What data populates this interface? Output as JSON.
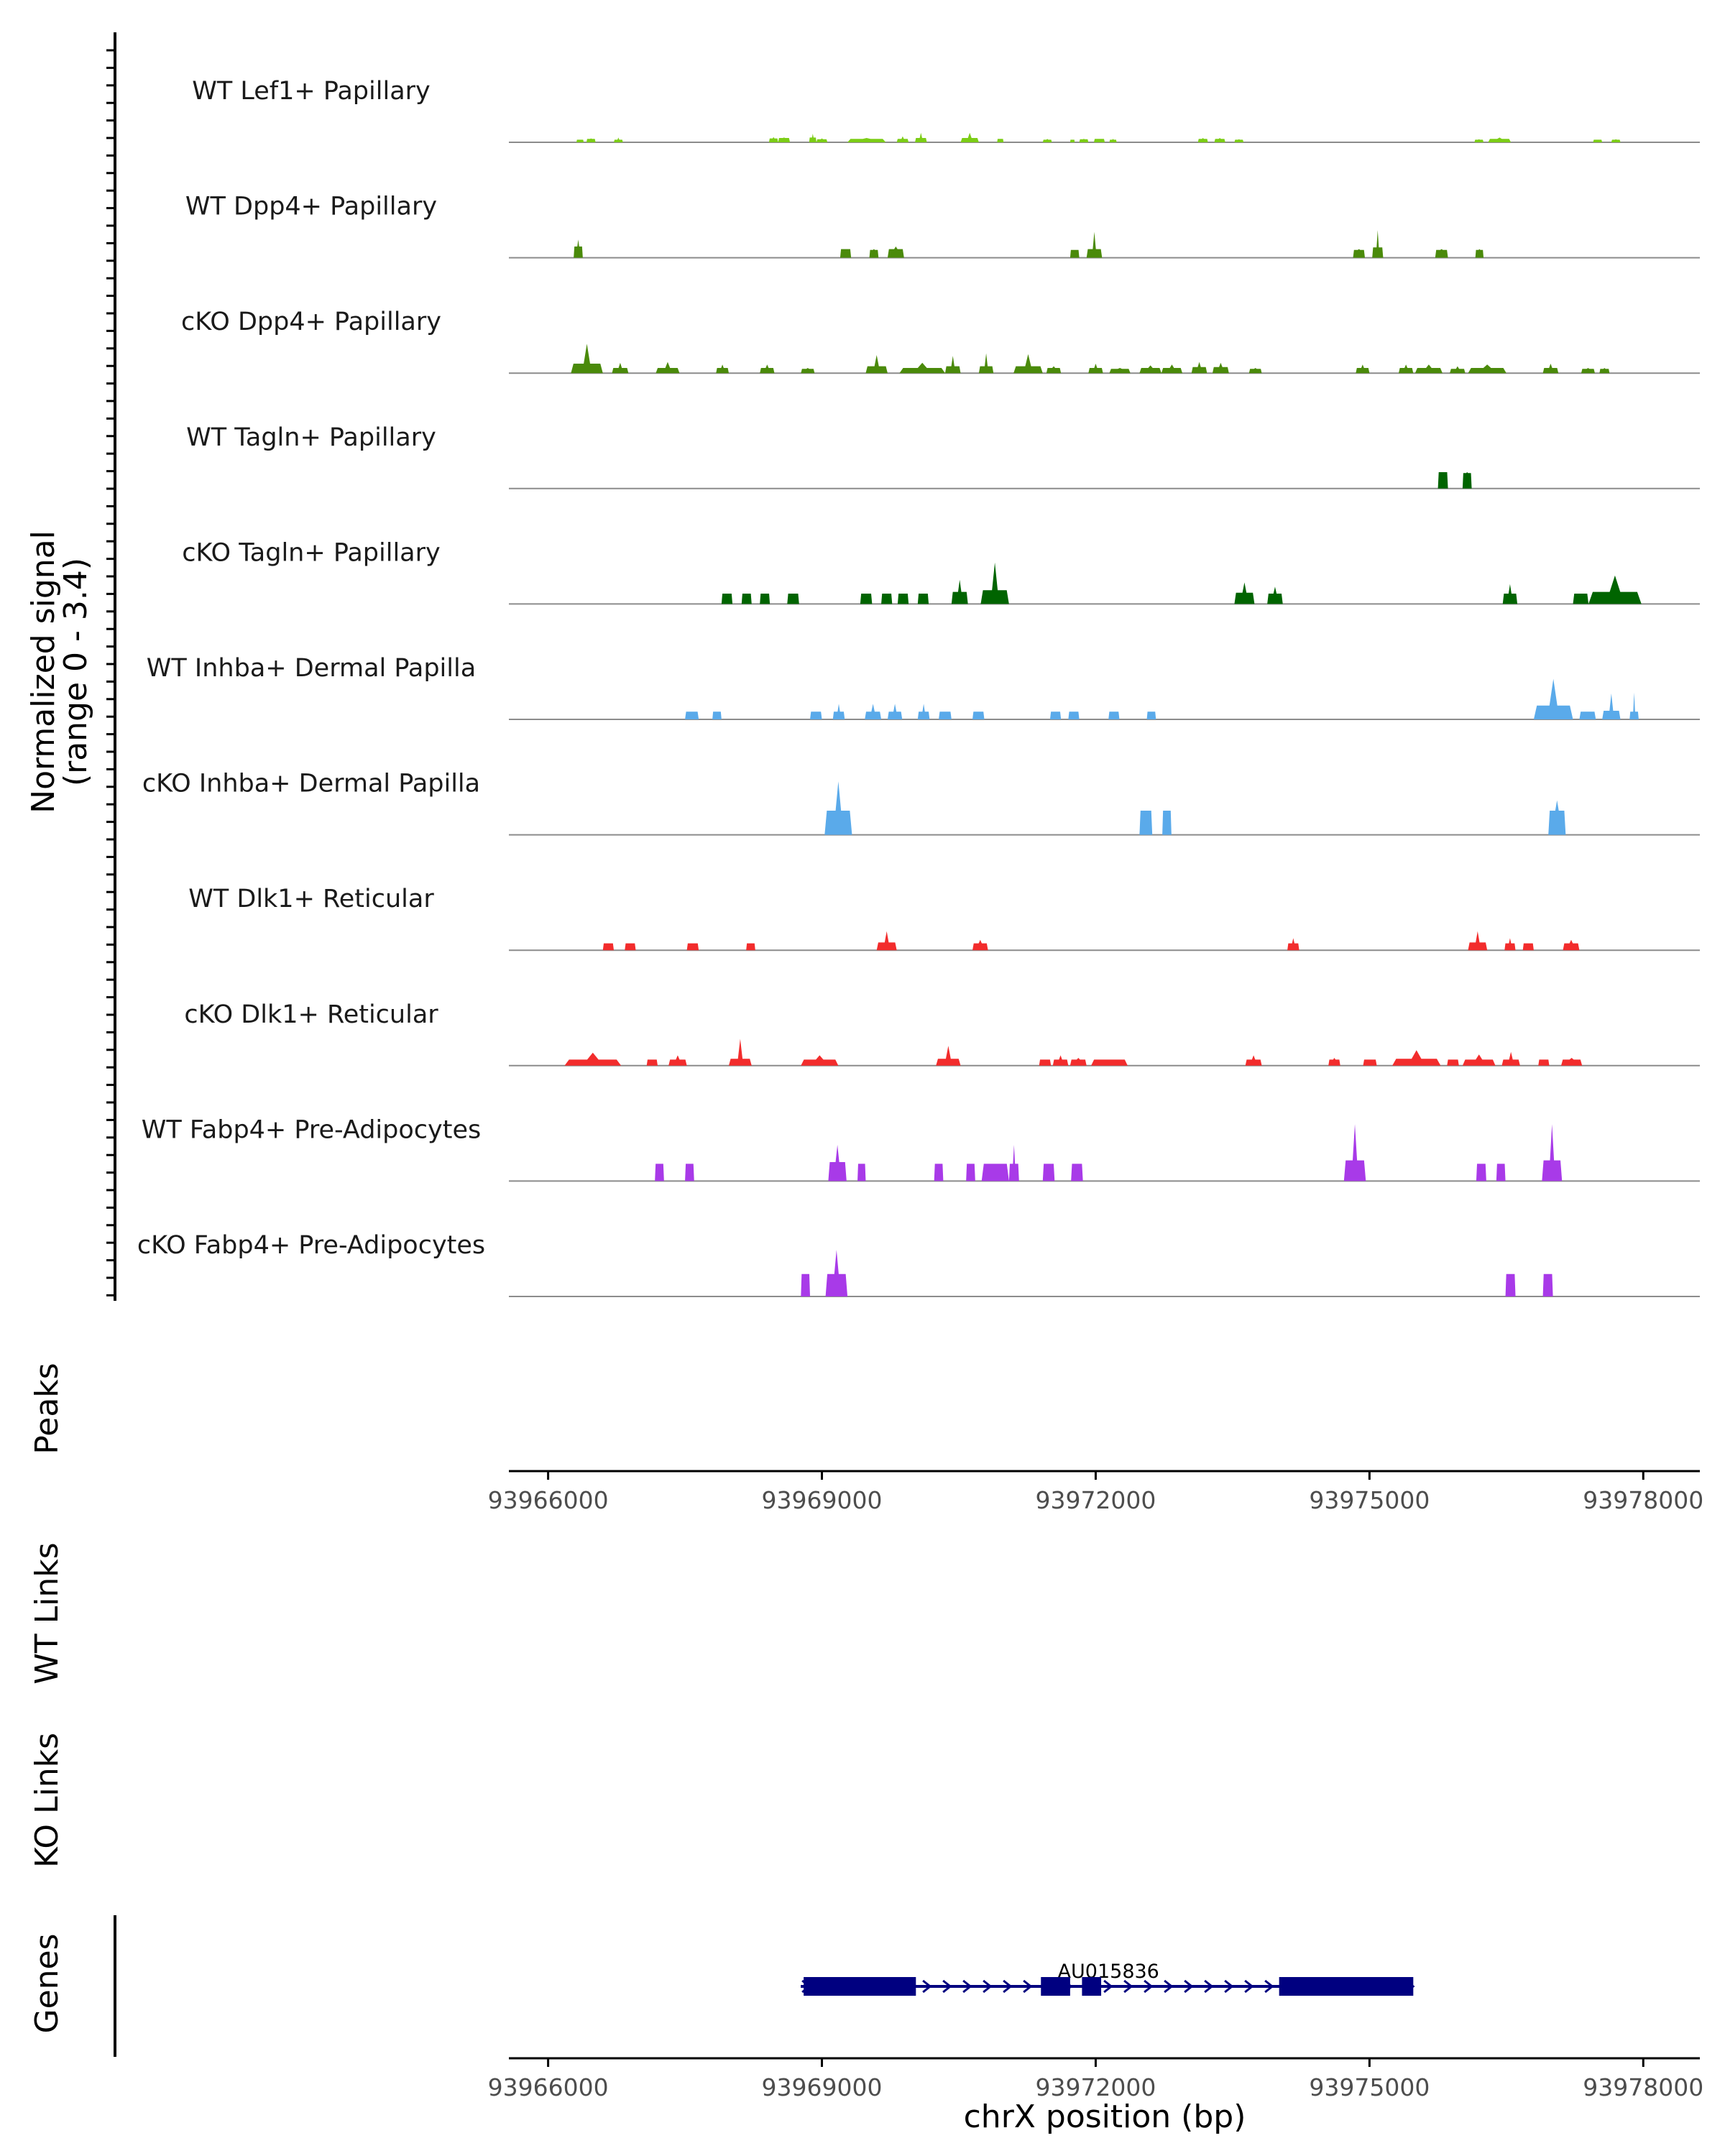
{
  "chart_data": {
    "type": "area",
    "title": "",
    "chromosome": "chrX",
    "xlabel": "chrX position (bp)",
    "xlim": [
      93965570,
      93978620
    ],
    "xticks": [
      93966000,
      93969000,
      93972000,
      93975000,
      93978000
    ],
    "xtick_labels": [
      "93966000",
      "93969000",
      "93972000",
      "93975000",
      "93978000"
    ],
    "signal_ylabel_line1": "Normalized signal",
    "signal_ylabel_line2": "(range 0 - 3.4)",
    "ylim": [
      0,
      3.4
    ],
    "tracks": [
      {
        "name": "WT Lef1+ Papillary",
        "color": "#7CCD16",
        "regions": [
          [
            93966310,
            93966390,
            0.3,
            0.3
          ],
          [
            93966420,
            93966520,
            0.45,
            0.4
          ],
          [
            93966720,
            93966820,
            0.55,
            0.3
          ],
          [
            93968420,
            93968520,
            0.6,
            0.45
          ],
          [
            93968520,
            93968650,
            0.55,
            0.5
          ],
          [
            93968860,
            93968940,
            1.0,
            0.55
          ],
          [
            93968940,
            93969060,
            0.45,
            0.35
          ],
          [
            93969280,
            93969700,
            0.5,
            0.4
          ],
          [
            93969820,
            93969950,
            0.7,
            0.4
          ],
          [
            93970020,
            93970150,
            1.1,
            0.5
          ],
          [
            93970520,
            93970720,
            1.1,
            0.5
          ],
          [
            93970920,
            93970990,
            0.4,
            0.4
          ],
          [
            93971420,
            93971520,
            0.4,
            0.3
          ],
          [
            93971720,
            93971770,
            0.3,
            0.3
          ],
          [
            93971820,
            93971920,
            0.4,
            0.35
          ],
          [
            93971980,
            93972100,
            0.4,
            0.4
          ],
          [
            93972150,
            93972230,
            0.4,
            0.3
          ],
          [
            93973120,
            93973230,
            0.5,
            0.4
          ],
          [
            93973300,
            93973420,
            0.5,
            0.4
          ],
          [
            93973520,
            93973620,
            0.35,
            0.3
          ],
          [
            93976150,
            93976250,
            0.35,
            0.3
          ],
          [
            93976300,
            93976550,
            0.55,
            0.4
          ],
          [
            93977450,
            93977550,
            0.3,
            0.3
          ],
          [
            93977650,
            93977750,
            0.35,
            0.3
          ]
        ]
      },
      {
        "name": "WT Dpp4+ Papillary",
        "color": "#4A8A0A",
        "regions": [
          [
            93966280,
            93966380,
            2.1,
            1.3
          ],
          [
            93969200,
            93969320,
            1.0,
            1.0
          ],
          [
            93969520,
            93969620,
            1.0,
            0.9
          ],
          [
            93969720,
            93969900,
            1.3,
            1.0
          ],
          [
            93971720,
            93971820,
            0.9,
            0.9
          ],
          [
            93971900,
            93972070,
            3.0,
            1.0
          ],
          [
            93974820,
            93974950,
            1.0,
            0.9
          ],
          [
            93975030,
            93975150,
            3.2,
            1.2
          ],
          [
            93975720,
            93975860,
            1.0,
            0.9
          ],
          [
            93976160,
            93976250,
            1.0,
            0.9
          ]
        ]
      },
      {
        "name": "cKO Dpp4+ Papillary",
        "color": "#4A8A0A",
        "regions": [
          [
            93966250,
            93966600,
            3.4,
            1.1
          ],
          [
            93966700,
            93966880,
            1.2,
            0.6
          ],
          [
            93967180,
            93967440,
            1.3,
            0.6
          ],
          [
            93967840,
            93967980,
            1.0,
            0.6
          ],
          [
            93968320,
            93968480,
            1.0,
            0.6
          ],
          [
            93968770,
            93968920,
            0.6,
            0.5
          ],
          [
            93969480,
            93969720,
            2.1,
            0.8
          ],
          [
            93969850,
            93970350,
            1.2,
            0.6
          ],
          [
            93970350,
            93970520,
            2.0,
            0.8
          ],
          [
            93970720,
            93970880,
            2.3,
            0.8
          ],
          [
            93971100,
            93971420,
            2.2,
            0.8
          ],
          [
            93971460,
            93971620,
            0.8,
            0.6
          ],
          [
            93971920,
            93972080,
            1.1,
            0.6
          ],
          [
            93972150,
            93972380,
            0.6,
            0.5
          ],
          [
            93972480,
            93972720,
            0.9,
            0.6
          ],
          [
            93972720,
            93972950,
            1.0,
            0.6
          ],
          [
            93973050,
            93973220,
            1.3,
            0.7
          ],
          [
            93973280,
            93973460,
            1.2,
            0.7
          ],
          [
            93973680,
            93973820,
            0.6,
            0.5
          ],
          [
            93974850,
            93975000,
            1.0,
            0.6
          ],
          [
            93975320,
            93975480,
            1.0,
            0.6
          ],
          [
            93975500,
            93975800,
            1.0,
            0.6
          ],
          [
            93975880,
            93976050,
            0.8,
            0.5
          ],
          [
            93976080,
            93976500,
            1.0,
            0.6
          ],
          [
            93976900,
            93977070,
            1.1,
            0.6
          ],
          [
            93977320,
            93977470,
            0.6,
            0.5
          ],
          [
            93977520,
            93977630,
            0.6,
            0.5
          ]
        ]
      },
      {
        "name": "WT Tagln+ Papillary",
        "color": "#006400",
        "regions": [
          [
            93975750,
            93975860,
            1.9,
            1.9
          ],
          [
            93976020,
            93976120,
            1.9,
            1.8
          ]
        ]
      },
      {
        "name": "cKO Tagln+ Papillary",
        "color": "#006400",
        "regions": [
          [
            93967900,
            93968020,
            1.2,
            1.2
          ],
          [
            93968120,
            93968230,
            1.2,
            1.2
          ],
          [
            93968320,
            93968430,
            1.2,
            1.2
          ],
          [
            93968620,
            93968750,
            1.2,
            1.2
          ],
          [
            93969420,
            93969550,
            1.2,
            1.2
          ],
          [
            93969650,
            93969770,
            1.2,
            1.2
          ],
          [
            93969830,
            93969950,
            1.2,
            1.2
          ],
          [
            93970050,
            93970170,
            1.2,
            1.2
          ],
          [
            93970420,
            93970600,
            2.8,
            1.4
          ],
          [
            93970740,
            93971050,
            4.8,
            1.6
          ],
          [
            93973520,
            93973740,
            2.5,
            1.3
          ],
          [
            93973880,
            93974050,
            2.0,
            1.2
          ],
          [
            93976460,
            93976620,
            2.3,
            1.2
          ],
          [
            93977230,
            93977400,
            1.2,
            1.2
          ],
          [
            93977400,
            93977980,
            3.3,
            1.4
          ]
        ]
      },
      {
        "name": "WT Inhba+ Dermal Papilla",
        "color": "#5AAAEA",
        "regions": [
          [
            93967500,
            93967650,
            0.9,
            0.9
          ],
          [
            93967800,
            93967900,
            0.9,
            0.9
          ],
          [
            93968870,
            93969000,
            0.9,
            0.9
          ],
          [
            93969120,
            93969250,
            1.8,
            0.9
          ],
          [
            93969470,
            93969650,
            1.8,
            0.9
          ],
          [
            93969720,
            93969880,
            1.8,
            0.9
          ],
          [
            93970050,
            93970180,
            1.8,
            0.9
          ],
          [
            93970280,
            93970420,
            0.9,
            0.9
          ],
          [
            93970650,
            93970780,
            0.9,
            0.9
          ],
          [
            93971500,
            93971620,
            0.9,
            0.9
          ],
          [
            93971700,
            93971820,
            0.9,
            0.9
          ],
          [
            93972140,
            93972260,
            0.9,
            0.9
          ],
          [
            93972560,
            93972660,
            0.9,
            0.9
          ],
          [
            93976800,
            93977230,
            4.7,
            1.6
          ],
          [
            93977300,
            93977480,
            0.9,
            0.9
          ],
          [
            93977550,
            93977750,
            3.0,
            1.0
          ],
          [
            93977850,
            93977950,
            3.1,
            0.9
          ]
        ]
      },
      {
        "name": "cKO Inhba+ Dermal Papilla",
        "color": "#5AAAEA",
        "regions": [
          [
            93969030,
            93969330,
            6.2,
            2.8
          ],
          [
            93972480,
            93972620,
            2.8,
            2.8
          ],
          [
            93972730,
            93972830,
            2.8,
            2.8
          ],
          [
            93976960,
            93977150,
            4.0,
            2.8
          ]
        ]
      },
      {
        "name": "WT Dlk1+ Reticular",
        "color": "#F22C2C",
        "regions": [
          [
            93966600,
            93966720,
            0.8,
            0.8
          ],
          [
            93966840,
            93966960,
            0.8,
            0.8
          ],
          [
            93967520,
            93967650,
            0.8,
            0.8
          ],
          [
            93968170,
            93968270,
            0.8,
            0.8
          ],
          [
            93969600,
            93969820,
            2.2,
            0.9
          ],
          [
            93970650,
            93970820,
            1.2,
            0.8
          ],
          [
            93974100,
            93974230,
            1.4,
            0.8
          ],
          [
            93976080,
            93976290,
            2.2,
            0.9
          ],
          [
            93976480,
            93976600,
            1.4,
            0.8
          ],
          [
            93976680,
            93976800,
            0.8,
            0.8
          ],
          [
            93977120,
            93977300,
            1.2,
            0.8
          ]
        ]
      },
      {
        "name": "cKO Dlk1+ Reticular",
        "color": "#F22C2C",
        "regions": [
          [
            93966180,
            93966800,
            1.5,
            0.7
          ],
          [
            93967080,
            93967200,
            0.7,
            0.7
          ],
          [
            93967320,
            93967520,
            1.2,
            0.7
          ],
          [
            93967980,
            93968230,
            3.1,
            0.8
          ],
          [
            93968770,
            93969180,
            1.2,
            0.7
          ],
          [
            93970250,
            93970520,
            2.3,
            0.8
          ],
          [
            93971380,
            93971510,
            0.7,
            0.7
          ],
          [
            93971530,
            93971700,
            1.2,
            0.7
          ],
          [
            93971720,
            93971900,
            0.9,
            0.7
          ],
          [
            93971950,
            93972350,
            0.7,
            0.7
          ],
          [
            93973640,
            93973820,
            1.2,
            0.7
          ],
          [
            93974550,
            93974680,
            0.9,
            0.7
          ],
          [
            93974930,
            93975080,
            0.7,
            0.7
          ],
          [
            93975250,
            93975780,
            1.8,
            0.8
          ],
          [
            93975850,
            93975980,
            0.7,
            0.7
          ],
          [
            93976020,
            93976380,
            1.3,
            0.7
          ],
          [
            93976450,
            93976650,
            1.6,
            0.7
          ],
          [
            93976850,
            93976970,
            0.7,
            0.7
          ],
          [
            93977100,
            93977330,
            0.9,
            0.7
          ]
        ]
      },
      {
        "name": "WT Fabp4+ Pre-Adipocytes",
        "color": "#A83AE8",
        "regions": [
          [
            93967170,
            93967270,
            2.0,
            2.0
          ],
          [
            93967500,
            93967600,
            2.0,
            2.0
          ],
          [
            93969070,
            93969270,
            4.2,
            2.2
          ],
          [
            93969390,
            93969480,
            2.0,
            2.0
          ],
          [
            93970230,
            93970330,
            2.0,
            2.0
          ],
          [
            93970580,
            93970680,
            2.0,
            2.0
          ],
          [
            93970750,
            93971050,
            2.0,
            2.0
          ],
          [
            93971050,
            93971160,
            4.2,
            2.0
          ],
          [
            93971420,
            93971550,
            2.0,
            2.0
          ],
          [
            93971730,
            93971860,
            2.0,
            2.0
          ],
          [
            93974720,
            93974960,
            6.6,
            2.4
          ],
          [
            93976170,
            93976280,
            2.0,
            2.0
          ],
          [
            93976390,
            93976490,
            2.0,
            2.0
          ],
          [
            93976890,
            93977110,
            6.6,
            2.4
          ]
        ]
      },
      {
        "name": "cKO Fabp4+ Pre-Adipocytes",
        "color": "#A83AE8",
        "regions": [
          [
            93968770,
            93968870,
            2.6,
            2.6
          ],
          [
            93969040,
            93969280,
            5.4,
            2.6
          ],
          [
            93976490,
            93976600,
            2.6,
            2.6
          ],
          [
            93976900,
            93977010,
            2.6,
            2.6
          ]
        ]
      }
    ],
    "peaks_label": "Peaks",
    "wt_links_label": "WT Links",
    "ko_links_label": "KO Links",
    "genes_label": "Genes",
    "gene": {
      "name": "AU015836",
      "strand": "+",
      "start": 93968800,
      "end": 93975480,
      "exons": [
        [
          93968800,
          93970030
        ],
        [
          93971400,
          93971720
        ],
        [
          93971850,
          93972060
        ],
        [
          93974010,
          93975480
        ]
      ]
    }
  }
}
